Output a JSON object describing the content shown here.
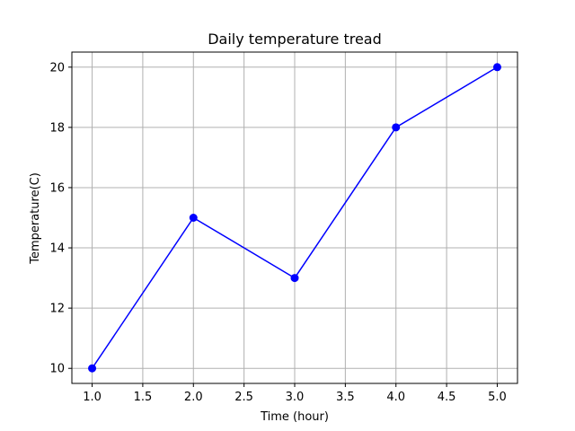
{
  "chart_data": {
    "type": "line",
    "title": "Daily temperature tread",
    "xlabel": "Time (hour)",
    "ylabel": "Temperature(C)",
    "xlim": [
      0.8,
      5.2
    ],
    "ylim": [
      9.5,
      20.5
    ],
    "x_ticks": [
      1.0,
      1.5,
      2.0,
      2.5,
      3.0,
      3.5,
      4.0,
      4.5,
      5.0
    ],
    "x_tick_labels": [
      "1.0",
      "1.5",
      "2.0",
      "2.5",
      "3.0",
      "3.5",
      "4.0",
      "4.5",
      "5.0"
    ],
    "y_ticks": [
      10,
      12,
      14,
      16,
      18,
      20
    ],
    "y_tick_labels": [
      "10",
      "12",
      "14",
      "16",
      "18",
      "20"
    ],
    "grid": true,
    "series": [
      {
        "x": [
          1,
          2,
          3,
          4,
          5
        ],
        "values": [
          10,
          15,
          13,
          18,
          20
        ],
        "color": "#0000ff",
        "marker": "circle"
      }
    ]
  }
}
